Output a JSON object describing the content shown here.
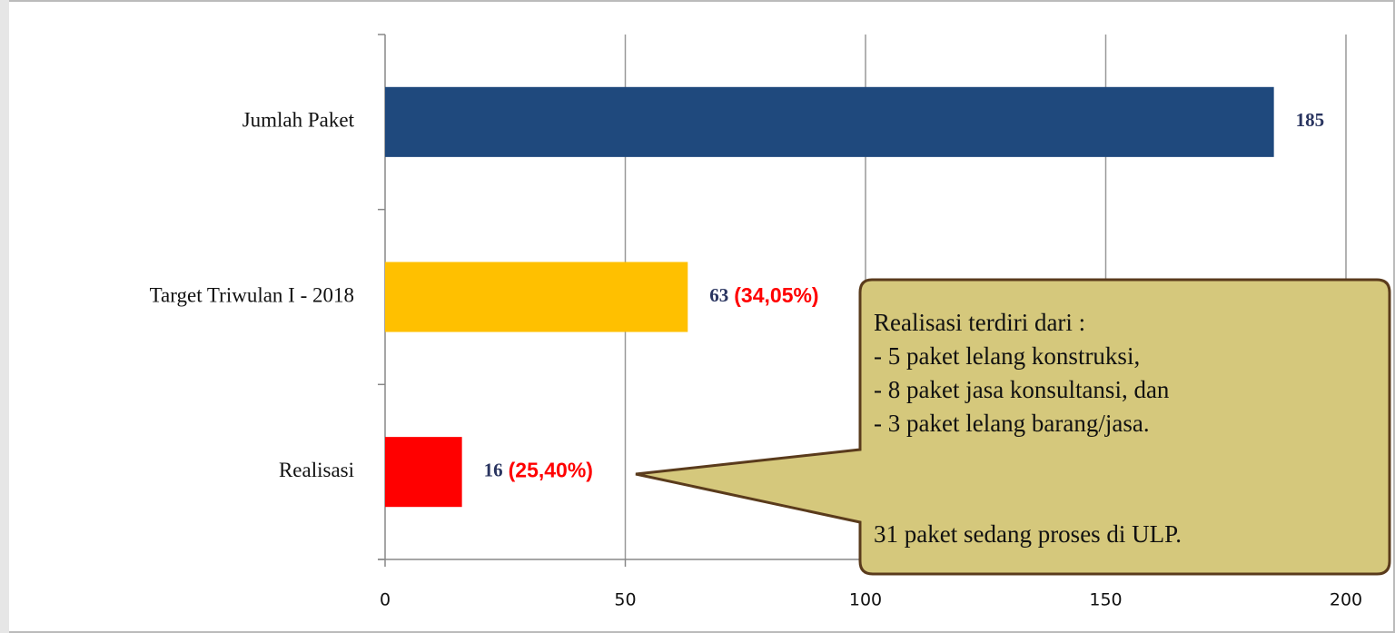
{
  "chart_data": {
    "type": "bar",
    "orientation": "horizontal",
    "categories": [
      "Jumlah Paket",
      "Target Triwulan I - 2018",
      "Realisasi"
    ],
    "values": [
      185,
      63,
      16
    ],
    "colors": [
      "#1f497d",
      "#ffc000",
      "#ff0000"
    ],
    "percent_labels": [
      null,
      "(34,05%)",
      "(25,40%)"
    ],
    "xlim": [
      0,
      200
    ],
    "xticks": [
      0,
      50,
      100,
      150,
      200
    ],
    "grid": true,
    "callout": {
      "lines": [
        "Realisasi terdiri dari :",
        "- 5 paket lelang konstruksi,",
        "- 8 paket jasa konsultansi, dan",
        "- 3 paket lelang barang/jasa."
      ],
      "footer": "31 paket sedang proses di ULP."
    }
  }
}
